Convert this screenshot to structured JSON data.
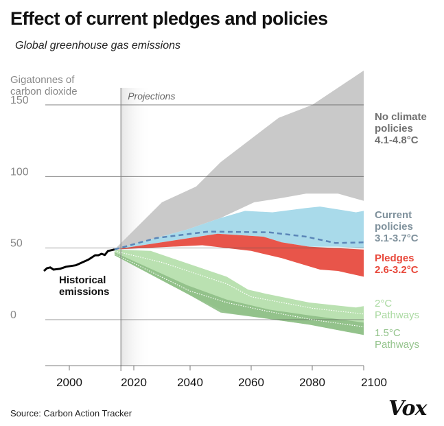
{
  "header": {
    "title": "Effect of current pledges and policies",
    "subtitle": "Global greenhouse gas emissions"
  },
  "footer": {
    "source": "Source: Carbon Action Tracker",
    "logo": "Vox"
  },
  "chart_data": {
    "type": "area",
    "title": "Effect of current pledges and policies",
    "subtitle": "Global greenhouse gas emissions",
    "ylabel": [
      "Gigatonnes of",
      "carbon dioxide"
    ],
    "xlabel": "",
    "ylim": [
      -32,
      175
    ],
    "xlim": [
      1992,
      2100
    ],
    "yticks": [
      {
        "v": 150,
        "label": "150"
      },
      {
        "v": 100,
        "label": "100"
      },
      {
        "v": 50,
        "label": "50"
      },
      {
        "v": 0,
        "label": "0"
      }
    ],
    "xticks": [
      {
        "v": 2000,
        "label": "2000"
      },
      {
        "v": 2020,
        "label": "2020"
      },
      {
        "v": 2040,
        "label": "2040"
      },
      {
        "v": 2060,
        "label": "2060"
      },
      {
        "v": 2080,
        "label": "2080"
      },
      {
        "v": 2100,
        "label": "2100"
      }
    ],
    "grid": true,
    "projection_start": 2016,
    "projection_label": "Projections",
    "historical": {
      "label": [
        "Historical",
        "emissions"
      ],
      "color": "#000000",
      "points": [
        [
          1992,
          34
        ],
        [
          1993,
          36
        ],
        [
          1994,
          36.5
        ],
        [
          1995,
          35
        ],
        [
          1997,
          35.5
        ],
        [
          1999,
          37
        ],
        [
          2002,
          38
        ],
        [
          2004,
          40
        ],
        [
          2006,
          42
        ],
        [
          2008,
          45
        ],
        [
          2009,
          45
        ],
        [
          2010,
          46
        ],
        [
          2011,
          45.2
        ],
        [
          2012,
          48
        ],
        [
          2013,
          48.5
        ],
        [
          2014,
          49
        ]
      ]
    },
    "bands": [
      {
        "name": "No climate policies",
        "label": [
          "No climate",
          "policies",
          "4.1-4.8°C"
        ],
        "color": "#c9c9c9",
        "label_color": "#707070",
        "upper": [
          [
            2014,
            49
          ],
          [
            2030,
            82
          ],
          [
            2042,
            93
          ],
          [
            2050,
            110
          ],
          [
            2069,
            141
          ],
          [
            2080,
            150
          ],
          [
            2100,
            174
          ]
        ],
        "lower": [
          [
            2014,
            49
          ],
          [
            2039,
            63
          ],
          [
            2050,
            71
          ],
          [
            2061,
            82
          ],
          [
            2070,
            85
          ],
          [
            2078,
            88
          ],
          [
            2090,
            88
          ],
          [
            2100,
            83
          ]
        ]
      },
      {
        "name": "Current policies",
        "label": [
          "Current",
          "policies",
          "3.1-3.7°C"
        ],
        "color": "#a9daea",
        "label_color": "#7f919c",
        "upper": [
          [
            2014,
            49
          ],
          [
            2039,
            63
          ],
          [
            2050,
            71
          ],
          [
            2058,
            76
          ],
          [
            2067,
            75
          ],
          [
            2078,
            78
          ],
          [
            2083,
            79
          ],
          [
            2097,
            75
          ],
          [
            2100,
            76
          ]
        ],
        "lower": [
          [
            2014,
            49
          ],
          [
            2049,
            60
          ],
          [
            2064,
            58
          ],
          [
            2070,
            54
          ],
          [
            2079,
            51
          ],
          [
            2090,
            51
          ],
          [
            2100,
            50
          ]
        ],
        "median": [
          [
            2014,
            49
          ],
          [
            2028,
            57
          ],
          [
            2046,
            61.5
          ],
          [
            2066,
            61
          ],
          [
            2078,
            58
          ],
          [
            2089,
            53.5
          ],
          [
            2100,
            54
          ]
        ],
        "median_color": "#5b86b8"
      },
      {
        "name": "Pledges",
        "label": [
          "Pledges",
          "2.6-3.2°C"
        ],
        "color": "#e8554a",
        "label_color": "#e8483b",
        "upper": [
          [
            2014,
            49
          ],
          [
            2049,
            60
          ],
          [
            2064,
            58
          ],
          [
            2070,
            54
          ],
          [
            2079,
            51
          ],
          [
            2100,
            49
          ]
        ],
        "lower": [
          [
            2014,
            49
          ],
          [
            2044,
            52
          ],
          [
            2060,
            48
          ],
          [
            2070,
            43
          ],
          [
            2083,
            35
          ],
          [
            2090,
            34
          ],
          [
            2100,
            30
          ]
        ]
      },
      {
        "name": "2°C Pathways",
        "label": [
          "2°C",
          "Pathways"
        ],
        "color": "#b2dea8",
        "label_color": "#a9d9a0",
        "upper": [
          [
            2014,
            49
          ],
          [
            2026,
            48
          ],
          [
            2052,
            30
          ],
          [
            2059,
            21
          ],
          [
            2065,
            18
          ],
          [
            2079,
            12
          ],
          [
            2097,
            8.5
          ],
          [
            2100,
            9.5
          ]
        ],
        "lower": [
          [
            2014,
            45
          ],
          [
            2040,
            17
          ],
          [
            2052,
            5
          ],
          [
            2066,
            0.5
          ],
          [
            2079,
            -3.5
          ],
          [
            2100,
            -10.7
          ]
        ],
        "median": [
          [
            2014,
            48
          ],
          [
            2030,
            40
          ],
          [
            2052,
            25
          ],
          [
            2060,
            16
          ],
          [
            2080,
            8
          ],
          [
            2100,
            4
          ]
        ],
        "median_color": "#ffffff"
      },
      {
        "name": "1.5°C Pathways",
        "label": [
          "1.5°C",
          "Pathways"
        ],
        "color": "#8fbf87",
        "label_color": "#93c38b",
        "upper": [
          [
            2014,
            47
          ],
          [
            2039,
            24
          ],
          [
            2052,
            14
          ],
          [
            2066,
            7
          ],
          [
            2079,
            3
          ],
          [
            2100,
            -2
          ]
        ],
        "lower": [
          [
            2014,
            45
          ],
          [
            2040,
            17
          ],
          [
            2050,
            5
          ],
          [
            2066,
            0.5
          ],
          [
            2079,
            -3.5
          ],
          [
            2100,
            -10.7
          ]
        ],
        "median": [
          [
            2014,
            46
          ],
          [
            2040,
            20
          ],
          [
            2052,
            12
          ],
          [
            2065,
            6
          ],
          [
            2080,
            0
          ],
          [
            2100,
            -5
          ]
        ],
        "median_color": "#ffffff"
      }
    ]
  }
}
